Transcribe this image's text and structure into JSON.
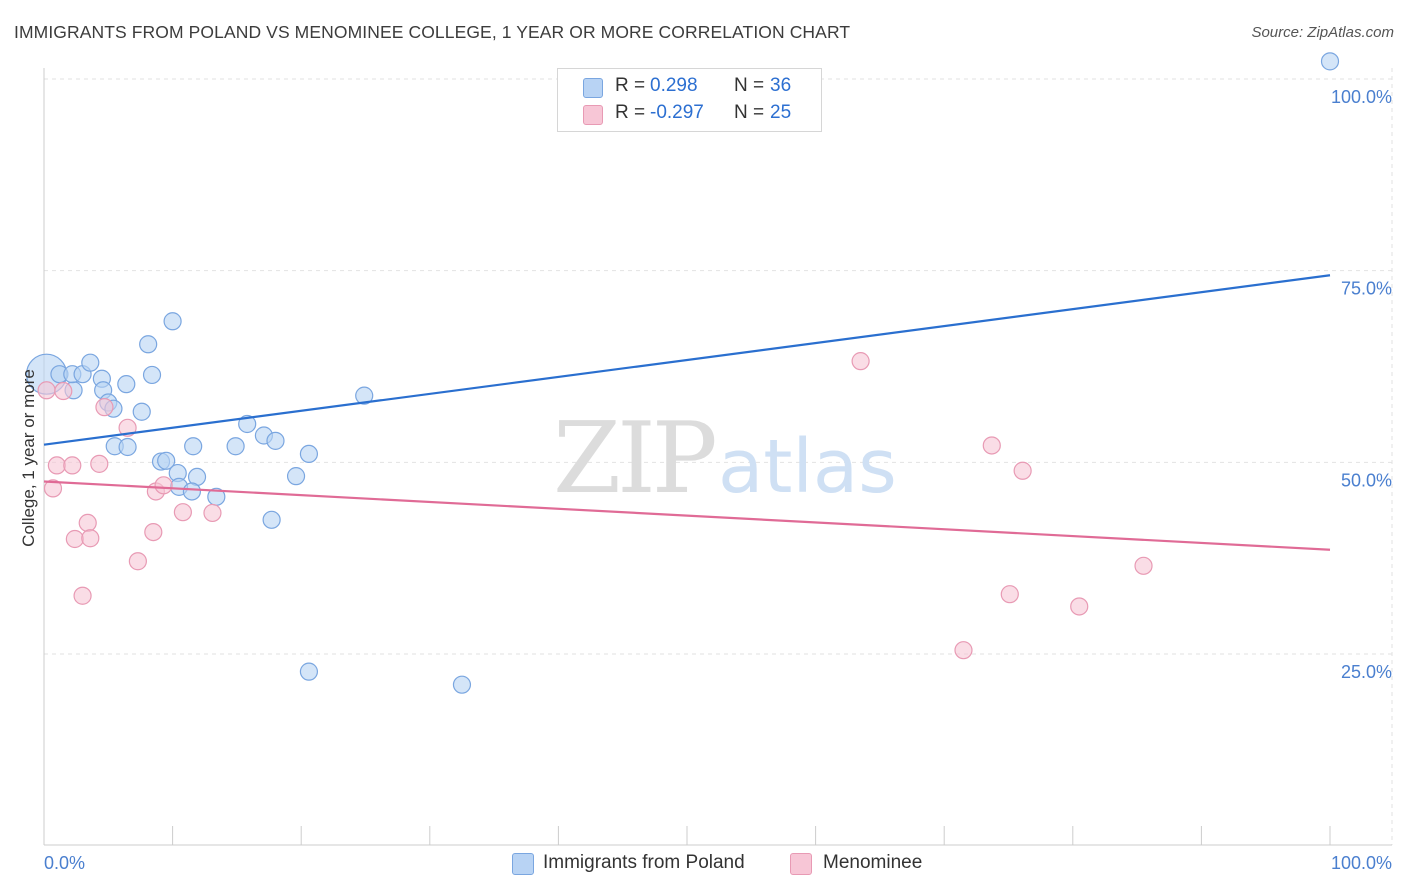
{
  "header": {
    "title": "IMMIGRANTS FROM POLAND VS MENOMINEE COLLEGE, 1 YEAR OR MORE CORRELATION CHART",
    "source": "Source: ZipAtlas.com"
  },
  "watermark": {
    "part1": "ZIP",
    "part2": "atlas"
  },
  "legend": {
    "rows": [
      {
        "r_label": "R =",
        "r_value": "0.298",
        "n_label": "N =",
        "n_value": "36"
      },
      {
        "r_label": "R =",
        "r_value": "-0.297",
        "n_label": "N =",
        "n_value": "25"
      }
    ]
  },
  "colors": {
    "poland_fill": "#b8d3f4",
    "poland_stroke": "#7aa6e0",
    "poland_line": "#2a6fcf",
    "menominee_fill": "#f7c6d6",
    "menominee_stroke": "#e89ab4",
    "menominee_line": "#e06b96",
    "tick_label": "#4a7fcf",
    "grid": "#e2e2e2",
    "axis": "#cccccc"
  },
  "chart_data": {
    "type": "scatter",
    "title": "IMMIGRANTS FROM POLAND VS MENOMINEE COLLEGE, 1 YEAR OR MORE CORRELATION CHART",
    "xlabel": "",
    "ylabel": "College, 1 year or more",
    "xlim": [
      0,
      100
    ],
    "ylim": [
      0,
      105
    ],
    "x_tick_labels": [
      "0.0%",
      "100.0%"
    ],
    "y_ticks": [
      25,
      50,
      75,
      100
    ],
    "y_tick_labels": [
      "25.0%",
      "50.0%",
      "75.0%",
      "100.0%"
    ],
    "grid": true,
    "legend_position": "bottom",
    "series": [
      {
        "name": "Immigrants from Poland",
        "r": 0.298,
        "n": 36,
        "trend": {
          "x": [
            0,
            100
          ],
          "y": [
            52.3,
            74.4
          ]
        },
        "points": [
          {
            "x": 0.2,
            "y": 61.5,
            "big": true
          },
          {
            "x": 1.2,
            "y": 61.5
          },
          {
            "x": 2.3,
            "y": 59.4
          },
          {
            "x": 2.2,
            "y": 61.5
          },
          {
            "x": 3.0,
            "y": 61.5
          },
          {
            "x": 3.6,
            "y": 63.0
          },
          {
            "x": 4.5,
            "y": 60.9
          },
          {
            "x": 4.6,
            "y": 59.4
          },
          {
            "x": 5.0,
            "y": 57.8
          },
          {
            "x": 5.4,
            "y": 57.0
          },
          {
            "x": 5.5,
            "y": 52.1
          },
          {
            "x": 6.4,
            "y": 60.2
          },
          {
            "x": 6.5,
            "y": 52.0
          },
          {
            "x": 7.6,
            "y": 56.6
          },
          {
            "x": 8.4,
            "y": 61.4
          },
          {
            "x": 8.1,
            "y": 65.4
          },
          {
            "x": 9.1,
            "y": 50.1
          },
          {
            "x": 9.5,
            "y": 50.2
          },
          {
            "x": 10.0,
            "y": 68.4
          },
          {
            "x": 10.4,
            "y": 48.6
          },
          {
            "x": 10.5,
            "y": 46.8
          },
          {
            "x": 11.6,
            "y": 52.1
          },
          {
            "x": 11.9,
            "y": 48.1
          },
          {
            "x": 11.5,
            "y": 46.2
          },
          {
            "x": 13.4,
            "y": 45.5
          },
          {
            "x": 14.9,
            "y": 52.1
          },
          {
            "x": 15.8,
            "y": 55.0
          },
          {
            "x": 17.1,
            "y": 53.5
          },
          {
            "x": 17.7,
            "y": 42.5
          },
          {
            "x": 18.0,
            "y": 52.8
          },
          {
            "x": 19.6,
            "y": 48.2
          },
          {
            "x": 20.6,
            "y": 51.1
          },
          {
            "x": 24.9,
            "y": 58.7
          },
          {
            "x": 20.6,
            "y": 22.7
          },
          {
            "x": 32.5,
            "y": 21.0
          },
          {
            "x": 100.0,
            "y": 102.3
          }
        ]
      },
      {
        "name": "Menominee",
        "r": -0.297,
        "n": 25,
        "trend": {
          "x": [
            0,
            100
          ],
          "y": [
            47.5,
            38.6
          ]
        },
        "points": [
          {
            "x": 0.2,
            "y": 59.4
          },
          {
            "x": 1.5,
            "y": 59.3
          },
          {
            "x": 0.7,
            "y": 46.6
          },
          {
            "x": 1.0,
            "y": 49.6
          },
          {
            "x": 2.2,
            "y": 49.6
          },
          {
            "x": 2.4,
            "y": 40.0
          },
          {
            "x": 3.0,
            "y": 32.6
          },
          {
            "x": 3.4,
            "y": 42.1
          },
          {
            "x": 3.6,
            "y": 40.1
          },
          {
            "x": 4.3,
            "y": 49.8
          },
          {
            "x": 4.7,
            "y": 57.2
          },
          {
            "x": 6.5,
            "y": 54.5
          },
          {
            "x": 7.3,
            "y": 37.1
          },
          {
            "x": 8.5,
            "y": 40.9
          },
          {
            "x": 8.7,
            "y": 46.2
          },
          {
            "x": 9.3,
            "y": 47.0
          },
          {
            "x": 10.8,
            "y": 43.5
          },
          {
            "x": 13.1,
            "y": 43.4
          },
          {
            "x": 63.5,
            "y": 63.2
          },
          {
            "x": 71.5,
            "y": 25.5
          },
          {
            "x": 73.7,
            "y": 52.2
          },
          {
            "x": 75.1,
            "y": 32.8
          },
          {
            "x": 76.1,
            "y": 48.9
          },
          {
            "x": 80.5,
            "y": 31.2
          },
          {
            "x": 85.5,
            "y": 36.5
          }
        ]
      }
    ]
  }
}
